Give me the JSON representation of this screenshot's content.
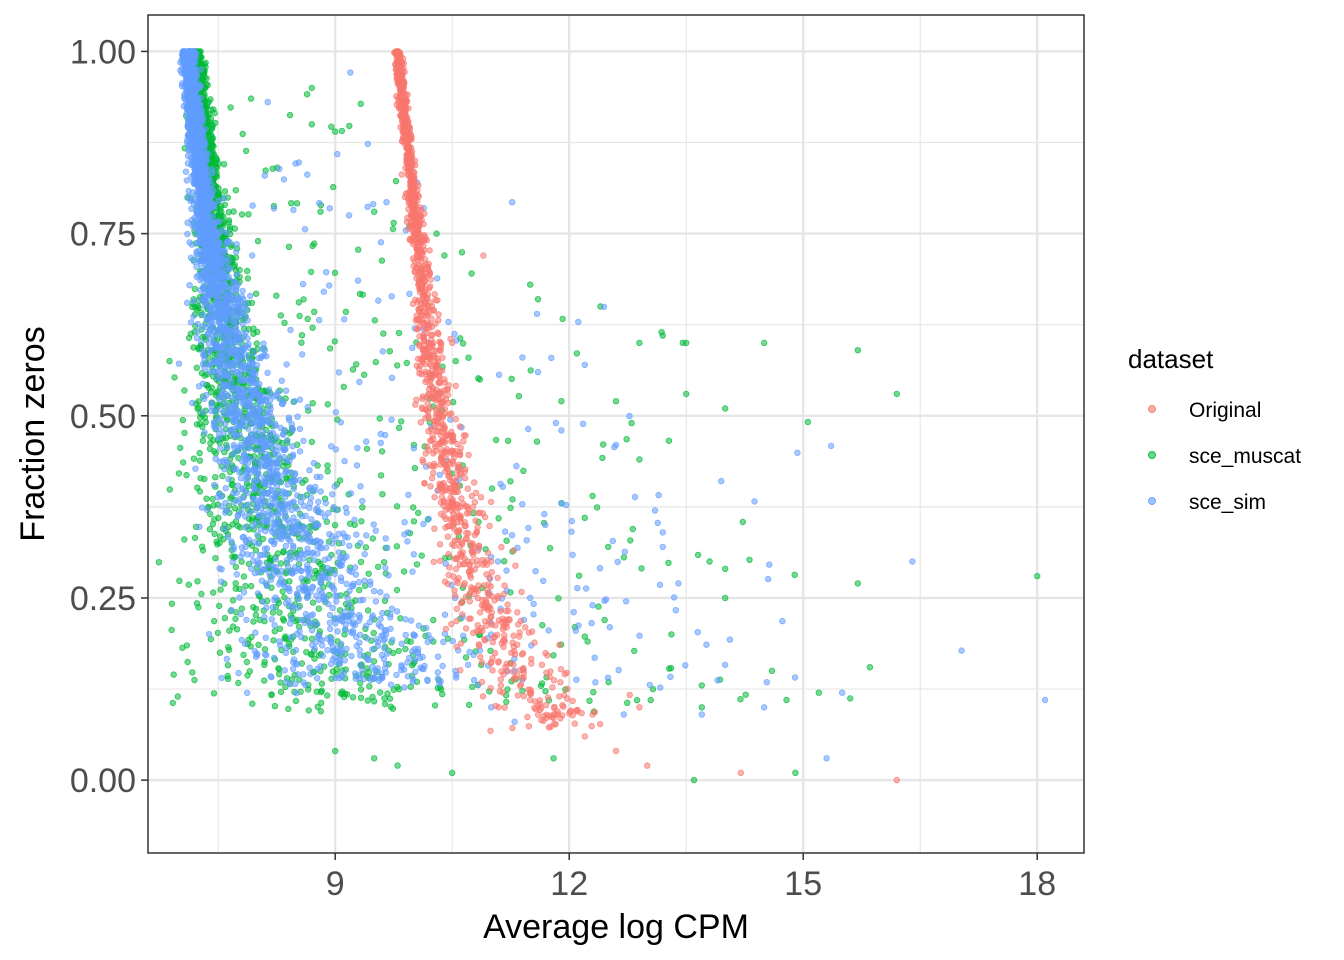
{
  "chart_data": {
    "type": "scatter",
    "title": "",
    "xlabel": "Average log CPM",
    "ylabel": "Fraction zeros",
    "xlim": [
      6.6,
      18.6
    ],
    "ylim": [
      -0.1,
      1.05
    ],
    "x_ticks": [
      9,
      12,
      15,
      18
    ],
    "x_tick_labels": [
      "9",
      "12",
      "15",
      "18"
    ],
    "y_ticks": [
      0,
      0.25,
      0.5,
      0.75,
      1.0
    ],
    "y_tick_labels": [
      "0.00",
      "0.25",
      "0.50",
      "0.75",
      "1.00"
    ],
    "grid": true,
    "legend": {
      "title": "dataset",
      "position": "right"
    },
    "series": [
      {
        "name": "Original",
        "color": "#F8766D",
        "dense_curve": [
          [
            9.8,
            1.0
          ],
          [
            9.9,
            0.9
          ],
          [
            10.0,
            0.8
          ],
          [
            10.1,
            0.7
          ],
          [
            10.2,
            0.6
          ],
          [
            10.3,
            0.5
          ],
          [
            10.45,
            0.42
          ],
          [
            10.6,
            0.35
          ],
          [
            10.8,
            0.28
          ],
          [
            11.0,
            0.22
          ],
          [
            11.3,
            0.16
          ],
          [
            11.6,
            0.12
          ],
          [
            12.0,
            0.07
          ]
        ],
        "outliers": [
          [
            10.9,
            0.72
          ],
          [
            10.5,
            0.6
          ],
          [
            10.4,
            0.55
          ],
          [
            10.6,
            0.45
          ],
          [
            10.7,
            0.4
          ],
          [
            11.2,
            0.15
          ],
          [
            11.5,
            0.11
          ],
          [
            11.8,
            0.09
          ],
          [
            12.2,
            0.06
          ],
          [
            12.3,
            0.09
          ],
          [
            12.6,
            0.04
          ],
          [
            12.9,
            0.1
          ],
          [
            13.0,
            0.02
          ],
          [
            14.2,
            0.01
          ],
          [
            16.2,
            0.0
          ]
        ]
      },
      {
        "name": "sce_muscat",
        "color": "#00BA38",
        "dense_curve": [
          [
            7.2,
            1.0
          ],
          [
            7.3,
            0.9
          ],
          [
            7.4,
            0.8
          ],
          [
            7.5,
            0.7
          ],
          [
            7.6,
            0.6
          ],
          [
            7.75,
            0.5
          ],
          [
            7.9,
            0.42
          ],
          [
            8.1,
            0.33
          ],
          [
            8.3,
            0.25
          ],
          [
            8.6,
            0.17
          ],
          [
            8.9,
            0.1
          ]
        ],
        "outliers": [
          [
            8.7,
            0.95
          ],
          [
            8.7,
            0.9
          ],
          [
            9.0,
            0.89
          ],
          [
            9.5,
            0.78
          ],
          [
            10.3,
            0.75
          ],
          [
            10.4,
            0.72
          ],
          [
            11.5,
            0.68
          ],
          [
            11.6,
            0.66
          ],
          [
            12.4,
            0.65
          ],
          [
            12.9,
            0.6
          ],
          [
            13.2,
            0.61
          ],
          [
            13.5,
            0.6
          ],
          [
            14.5,
            0.6
          ],
          [
            15.7,
            0.59
          ],
          [
            16.2,
            0.53
          ],
          [
            14.0,
            0.51
          ],
          [
            13.5,
            0.53
          ],
          [
            12.6,
            0.52
          ],
          [
            11.9,
            0.52
          ],
          [
            12.8,
            0.49
          ],
          [
            12.9,
            0.44
          ],
          [
            12.3,
            0.39
          ],
          [
            11.9,
            0.38
          ],
          [
            12.2,
            0.36
          ],
          [
            13.8,
            0.3
          ],
          [
            14.0,
            0.29
          ],
          [
            15.7,
            0.27
          ],
          [
            18.0,
            0.28
          ],
          [
            14.0,
            0.25
          ],
          [
            14.6,
            0.15
          ],
          [
            15.2,
            0.12
          ],
          [
            13.7,
            0.13
          ],
          [
            13.7,
            0.1
          ],
          [
            14.9,
            0.01
          ],
          [
            13.6,
            0.0
          ],
          [
            11.8,
            0.03
          ],
          [
            10.5,
            0.01
          ],
          [
            9.5,
            0.03
          ],
          [
            9.8,
            0.02
          ],
          [
            9.0,
            0.04
          ]
        ]
      },
      {
        "name": "sce_sim",
        "color": "#619CFF",
        "dense_curve": [
          [
            7.1,
            1.0
          ],
          [
            7.2,
            0.9
          ],
          [
            7.3,
            0.8
          ],
          [
            7.45,
            0.7
          ],
          [
            7.6,
            0.62
          ],
          [
            7.8,
            0.53
          ],
          [
            8.0,
            0.45
          ],
          [
            8.3,
            0.36
          ],
          [
            8.6,
            0.28
          ],
          [
            9.0,
            0.2
          ],
          [
            9.5,
            0.13
          ]
        ],
        "outliers": [
          [
            10.2,
            0.6
          ],
          [
            11.4,
            0.58
          ],
          [
            11.6,
            0.56
          ],
          [
            12.2,
            0.57
          ],
          [
            11.9,
            0.48
          ],
          [
            12.6,
            0.46
          ],
          [
            13.1,
            0.37
          ],
          [
            13.2,
            0.34
          ],
          [
            13.2,
            0.32
          ],
          [
            16.4,
            0.3
          ],
          [
            13.4,
            0.27
          ],
          [
            12.3,
            0.24
          ],
          [
            11.5,
            0.25
          ],
          [
            11.2,
            0.26
          ],
          [
            11.0,
            0.2
          ],
          [
            11.3,
            0.15
          ],
          [
            11.0,
            0.1
          ],
          [
            11.3,
            0.08
          ],
          [
            12.7,
            0.09
          ],
          [
            13.7,
            0.09
          ],
          [
            14.5,
            0.1
          ],
          [
            15.5,
            0.12
          ],
          [
            15.3,
            0.03
          ],
          [
            18.1,
            0.11
          ]
        ]
      }
    ]
  }
}
